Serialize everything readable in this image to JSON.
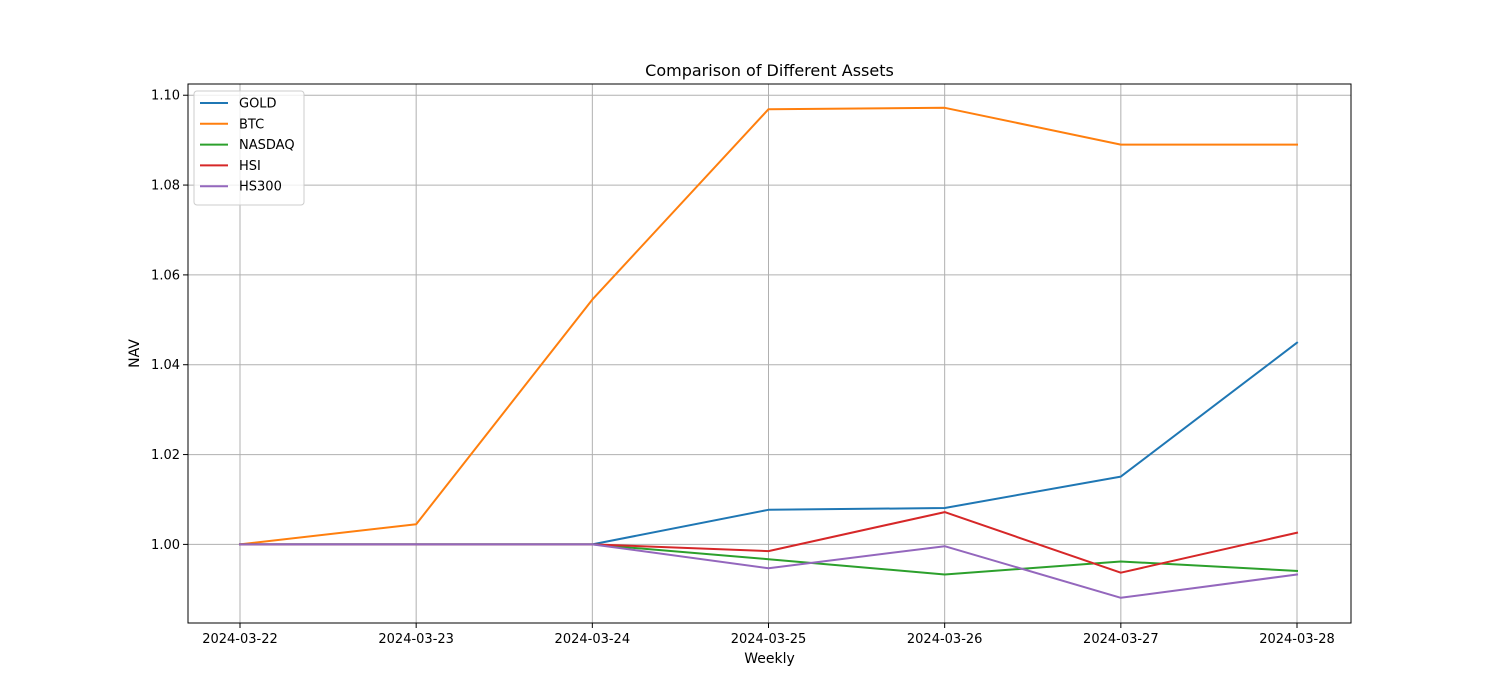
{
  "chart_data": {
    "type": "line",
    "title": "Comparison of Different Assets",
    "xlabel": "Weekly",
    "ylabel": "NAV",
    "categories": [
      "2024-03-22",
      "2024-03-23",
      "2024-03-24",
      "2024-03-25",
      "2024-03-26",
      "2024-03-27",
      "2024-03-28"
    ],
    "ylim": [
      0.9825,
      1.1025
    ],
    "yticks": [
      "1.00",
      "1.02",
      "1.04",
      "1.06",
      "1.08",
      "1.10"
    ],
    "grid": true,
    "legend_position": "top-left",
    "series": [
      {
        "name": "GOLD",
        "color": "#1f77b4",
        "values": [
          1.0,
          1.0,
          1.0,
          1.0077,
          1.0081,
          1.0151,
          1.0449
        ]
      },
      {
        "name": "BTC",
        "color": "#ff7f0e",
        "values": [
          1.0,
          1.0045,
          1.0545,
          1.0969,
          1.0972,
          1.089,
          1.089
        ]
      },
      {
        "name": "NASDAQ",
        "color": "#2ca02c",
        "values": [
          1.0,
          1.0,
          1.0,
          0.9967,
          0.9933,
          0.9962,
          0.9941
        ]
      },
      {
        "name": "HSI",
        "color": "#d62728",
        "values": [
          1.0,
          1.0,
          1.0,
          0.9985,
          1.0072,
          0.9937,
          1.0026
        ]
      },
      {
        "name": "HS300",
        "color": "#9467bd",
        "values": [
          1.0,
          1.0,
          1.0,
          0.9947,
          0.9996,
          0.9881,
          0.9933
        ]
      }
    ]
  }
}
